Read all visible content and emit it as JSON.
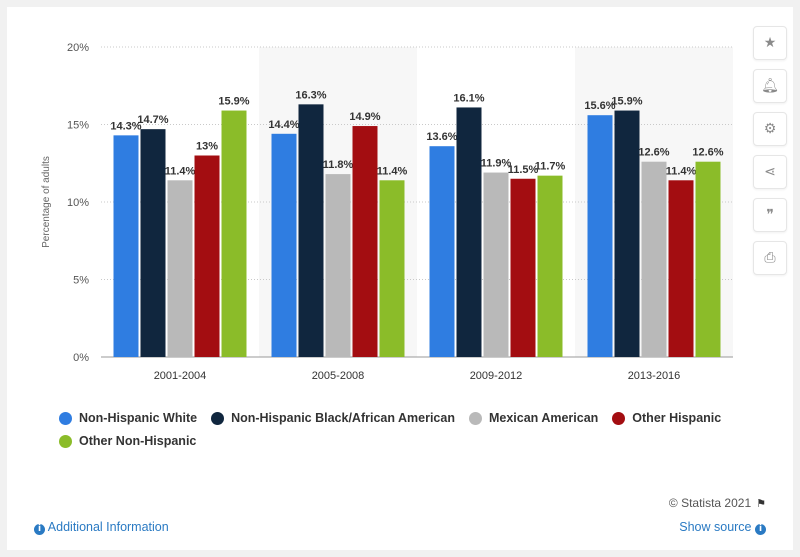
{
  "toolbar": {
    "icons": [
      "star-icon",
      "bell-icon",
      "gear-icon",
      "share-icon",
      "quote-icon",
      "print-icon"
    ]
  },
  "chart_data": {
    "type": "bar",
    "categories": [
      "2001-2004",
      "2005-2008",
      "2009-2012",
      "2013-2016"
    ],
    "series": [
      {
        "name": "Non-Hispanic White",
        "color": "#2f7de1",
        "values": [
          14.3,
          14.4,
          13.6,
          15.6
        ],
        "labels": [
          "14.3%",
          "14.4%",
          "13.6%",
          "15.6%"
        ]
      },
      {
        "name": "Non-Hispanic Black/African American",
        "color": "#10263e",
        "values": [
          14.7,
          16.3,
          16.1,
          15.9
        ],
        "labels": [
          "14.7%",
          "16.3%",
          "16.1%",
          "15.9%"
        ]
      },
      {
        "name": "Mexican American",
        "color": "#b9b9b9",
        "values": [
          11.4,
          11.8,
          11.9,
          12.6
        ],
        "labels": [
          "11.4%",
          "11.8%",
          "11.9%",
          "12.6%"
        ]
      },
      {
        "name": "Other Hispanic",
        "color": "#a30d11",
        "values": [
          13,
          14.9,
          11.5,
          11.4
        ],
        "labels": [
          "13%",
          "14.9%",
          "11.5%",
          "11.4%"
        ]
      },
      {
        "name": "Other Non-Hispanic",
        "color": "#8bbc29",
        "values": [
          15.9,
          11.4,
          11.7,
          12.6
        ],
        "labels": [
          "15.9%",
          "11.4%",
          "11.7%",
          "12.6%"
        ]
      }
    ],
    "ylabel": "Percentage of adults",
    "yticks": [
      "0%",
      "5%",
      "10%",
      "15%",
      "20%"
    ],
    "ylim": [
      0,
      20
    ],
    "grid": true,
    "legend_position": "bottom"
  },
  "footer": {
    "credit": "© Statista 2021",
    "additional_info": "Additional Information",
    "show_source": "Show source"
  }
}
